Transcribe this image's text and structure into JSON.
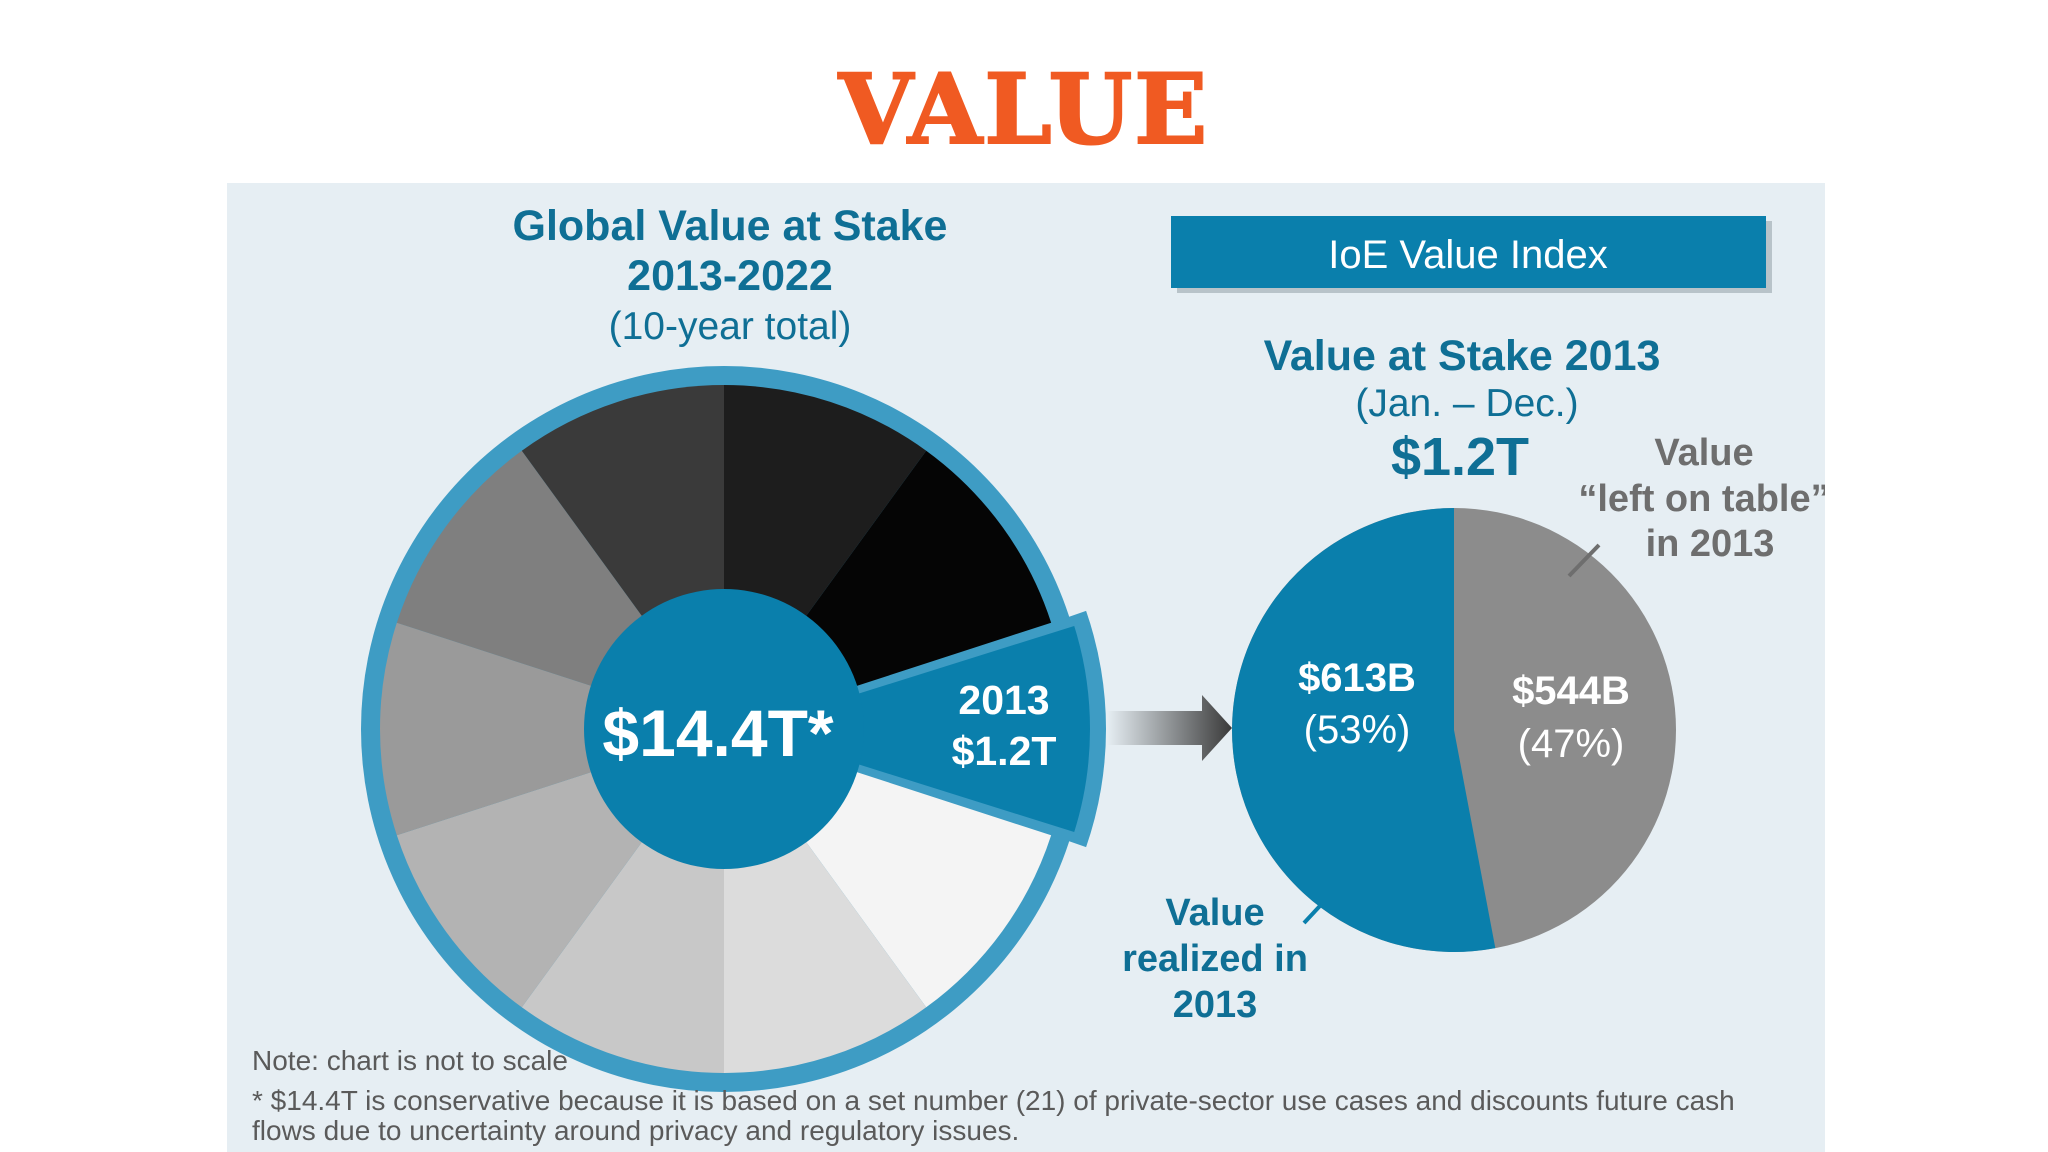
{
  "page": {
    "title": "VALUE"
  },
  "colors": {
    "title_orange": "#f05a22",
    "brand_blue": "#0a7fac",
    "blue_ring": "#3e9cc4",
    "text_blue": "#0f6f95",
    "grey_slice": "#8c8c8c",
    "grey_label": "#6e6e6e",
    "panel_bg": "#e6eef3"
  },
  "chart_data": [
    {
      "type": "pie",
      "title": "Global Value at Stake",
      "title_line2": "2013-2022",
      "subtitle": "(10-year total)",
      "center_label": "$14.4T*",
      "highlighted": {
        "year_label": "2013",
        "value_label": "$1.2T"
      },
      "slice_count": 10,
      "slice_shades": [
        "#1d1d1d",
        "#050505",
        "#0a7fac",
        "#f4f4f4",
        "#dcdcdc",
        "#c8c8c8",
        "#b3b3b3",
        "#9a9a9a",
        "#7f7f7f",
        "#3a3a3a"
      ],
      "highlight_index": 2,
      "note": "Note: chart is not to scale"
    },
    {
      "type": "pie",
      "header_box": "IoE Value Index",
      "title": "Value at Stake 2013",
      "subtitle": "(Jan. – Dec.)",
      "total_label": "$1.2T",
      "slices": [
        {
          "name_lines": [
            "Value",
            "realized in",
            "2013"
          ],
          "value": 613,
          "value_label": "$613B",
          "percent": 53,
          "percent_label": "(53%)",
          "color": "#0a7fac"
        },
        {
          "name_lines": [
            "Value",
            "“left on table”",
            "in 2013"
          ],
          "value": 544,
          "value_label": "$544B",
          "percent": 47,
          "percent_label": "(47%)",
          "color": "#8c8c8c"
        }
      ]
    }
  ],
  "footnote": {
    "note": "Note: chart is not to scale",
    "line1": "* $14.4T is conservative because it is based on a set number (21) of private-sector use cases and discounts future cash",
    "line2": "flows due to uncertainty around privacy and regulatory issues."
  }
}
